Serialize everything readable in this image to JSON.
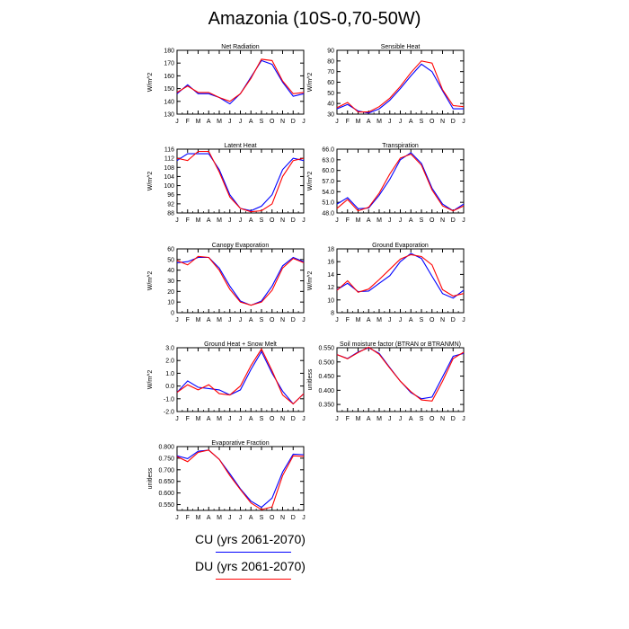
{
  "page": {
    "title": "Amazonia (10S-0,70-50W)"
  },
  "legend": [
    {
      "label": "CU (yrs 2061-2070)",
      "color": "#0000ff"
    },
    {
      "label": "DU (yrs 2061-2070)",
      "color": "#ff0000"
    }
  ],
  "chart_data": [
    {
      "type": "line",
      "title": "Net Radiation",
      "ylabel": "W/m^2",
      "x": [
        "J",
        "F",
        "M",
        "A",
        "M",
        "J",
        "J",
        "A",
        "S",
        "O",
        "N",
        "D",
        "J"
      ],
      "ylim": [
        130,
        180
      ],
      "yticks": [
        "130",
        "140",
        "150",
        "160",
        "170",
        "180"
      ],
      "series": [
        {
          "name": "CU (yrs 2061-2070)",
          "color": "#0000ff",
          "values": [
            146,
            153,
            146,
            146,
            143,
            138,
            146,
            159,
            172,
            169,
            155,
            144,
            146
          ]
        },
        {
          "name": "DU (yrs 2061-2070)",
          "color": "#ff0000",
          "values": [
            147,
            152,
            147,
            147,
            143,
            140,
            146,
            158,
            173,
            172,
            156,
            146,
            147
          ]
        }
      ]
    },
    {
      "type": "line",
      "title": "Sensible Heat",
      "ylabel": "W/m^2",
      "x": [
        "J",
        "F",
        "M",
        "A",
        "M",
        "J",
        "J",
        "A",
        "S",
        "O",
        "N",
        "D",
        "J"
      ],
      "ylim": [
        30,
        90
      ],
      "yticks": [
        "30",
        "40",
        "50",
        "60",
        "70",
        "80",
        "90"
      ],
      "series": [
        {
          "name": "CU (yrs 2061-2070)",
          "color": "#0000ff",
          "values": [
            35,
            39,
            33,
            31,
            35,
            43,
            54,
            66,
            77,
            70,
            52,
            35,
            35
          ]
        },
        {
          "name": "DU (yrs 2061-2070)",
          "color": "#ff0000",
          "values": [
            36,
            41,
            32,
            32,
            37,
            45,
            56,
            69,
            80,
            78,
            53,
            38,
            37
          ]
        }
      ]
    },
    {
      "type": "line",
      "title": "Latent Heat",
      "ylabel": "W/m^2",
      "x": [
        "J",
        "F",
        "M",
        "A",
        "M",
        "J",
        "J",
        "A",
        "S",
        "O",
        "N",
        "D",
        "J"
      ],
      "ylim": [
        88,
        116
      ],
      "yticks": [
        "88",
        "92",
        "96",
        "100",
        "104",
        "108",
        "112",
        "116"
      ],
      "series": [
        {
          "name": "CU (yrs 2061-2070)",
          "color": "#0000ff",
          "values": [
            111,
            114,
            114,
            114,
            107,
            96,
            90,
            89,
            91,
            96,
            107,
            112,
            111
          ]
        },
        {
          "name": "DU (yrs 2061-2070)",
          "color": "#ff0000",
          "values": [
            112,
            111,
            115,
            115,
            106,
            95,
            90,
            88.5,
            89,
            92,
            104,
            111,
            112
          ]
        }
      ]
    },
    {
      "type": "line",
      "title": "Transpiration",
      "ylabel": "W/m^2",
      "x": [
        "J",
        "F",
        "M",
        "A",
        "M",
        "J",
        "J",
        "A",
        "S",
        "O",
        "N",
        "D",
        "J"
      ],
      "ylim": [
        48,
        66
      ],
      "yticks": [
        "48.0",
        "51.0",
        "54.0",
        "57.0",
        "60.0",
        "63.0",
        "66.0"
      ],
      "series": [
        {
          "name": "CU (yrs 2061-2070)",
          "color": "#0000ff",
          "values": [
            50.5,
            52.3,
            49.2,
            49.4,
            53.0,
            57.5,
            63.0,
            65.0,
            62.0,
            55.0,
            50.5,
            48.6,
            50.5
          ]
        },
        {
          "name": "DU (yrs 2061-2070)",
          "color": "#ff0000",
          "values": [
            49.3,
            51.8,
            48.6,
            49.6,
            53.6,
            59.0,
            63.5,
            64.6,
            61.5,
            54.5,
            50.0,
            48.6,
            50.0
          ]
        }
      ]
    },
    {
      "type": "line",
      "title": "Canopy Evaporation",
      "ylabel": "W/m^2",
      "x": [
        "J",
        "F",
        "M",
        "A",
        "M",
        "J",
        "J",
        "A",
        "S",
        "O",
        "N",
        "D",
        "J"
      ],
      "ylim": [
        0,
        60
      ],
      "yticks": [
        "0",
        "10",
        "20",
        "30",
        "40",
        "50",
        "60"
      ],
      "series": [
        {
          "name": "CU (yrs 2061-2070)",
          "color": "#0000ff",
          "values": [
            47,
            48,
            52,
            52,
            42,
            25,
            11,
            7,
            11,
            25,
            44,
            52,
            48
          ]
        },
        {
          "name": "DU (yrs 2061-2070)",
          "color": "#ff0000",
          "values": [
            49,
            45,
            53,
            52,
            40,
            22,
            10,
            7,
            10,
            21,
            42,
            51,
            47
          ]
        }
      ]
    },
    {
      "type": "line",
      "title": "Ground Evaporation",
      "ylabel": "W/m^2",
      "x": [
        "J",
        "F",
        "M",
        "A",
        "M",
        "J",
        "J",
        "A",
        "S",
        "O",
        "N",
        "D",
        "J"
      ],
      "ylim": [
        8,
        18
      ],
      "yticks": [
        "8",
        "10",
        "12",
        "14",
        "16",
        "18"
      ],
      "series": [
        {
          "name": "CU (yrs 2061-2070)",
          "color": "#0000ff",
          "values": [
            11.6,
            12.6,
            11.3,
            11.4,
            12.6,
            13.8,
            16.0,
            17.3,
            16.5,
            13.7,
            11.0,
            10.3,
            11.5
          ]
        },
        {
          "name": "DU (yrs 2061-2070)",
          "color": "#ff0000",
          "values": [
            11.5,
            13.0,
            11.2,
            11.7,
            13.2,
            14.8,
            16.4,
            17.1,
            16.8,
            15.5,
            11.6,
            10.6,
            11.0
          ]
        }
      ]
    },
    {
      "type": "line",
      "title": "Ground Heat + Snow Melt",
      "ylabel": "W/m^2",
      "x": [
        "J",
        "F",
        "M",
        "A",
        "M",
        "J",
        "J",
        "A",
        "S",
        "O",
        "N",
        "D",
        "J"
      ],
      "ylim": [
        -2.0,
        3.0
      ],
      "yticks": [
        "-2.0",
        "-1.0",
        "0.0",
        "1.0",
        "2.0",
        "3.0"
      ],
      "series": [
        {
          "name": "CU (yrs 2061-2070)",
          "color": "#0000ff",
          "values": [
            -0.5,
            0.4,
            -0.1,
            -0.2,
            -0.3,
            -0.7,
            -0.3,
            1.3,
            2.7,
            1.0,
            -0.4,
            -1.4,
            -0.6
          ]
        },
        {
          "name": "DU (yrs 2061-2070)",
          "color": "#ff0000",
          "values": [
            -0.5,
            0.1,
            -0.3,
            0.1,
            -0.6,
            -0.7,
            0.0,
            1.6,
            2.9,
            1.2,
            -0.7,
            -1.4,
            -0.6
          ]
        }
      ]
    },
    {
      "type": "line",
      "title": "Soil moisture factor (BTRAN or BTRANMN)",
      "ylabel": "unitless",
      "x": [
        "J",
        "F",
        "M",
        "A",
        "M",
        "J",
        "J",
        "A",
        "S",
        "O",
        "N",
        "D",
        "J"
      ],
      "ylim": [
        0.325,
        0.55
      ],
      "yticks": [
        "0.350",
        "0.400",
        "0.450",
        "0.500",
        "0.550"
      ],
      "series": [
        {
          "name": "CU (yrs 2061-2070)",
          "color": "#0000ff",
          "values": [
            0.526,
            0.512,
            0.535,
            0.55,
            0.53,
            0.48,
            0.432,
            0.392,
            0.37,
            0.376,
            0.447,
            0.52,
            0.53
          ]
        },
        {
          "name": "DU (yrs 2061-2070)",
          "color": "#ff0000",
          "values": [
            0.526,
            0.511,
            0.533,
            0.552,
            0.527,
            0.478,
            0.432,
            0.395,
            0.366,
            0.362,
            0.432,
            0.512,
            0.534
          ]
        }
      ]
    },
    {
      "type": "line",
      "title": "Evaporative Fraction",
      "ylabel": "unitless",
      "x": [
        "J",
        "F",
        "M",
        "A",
        "M",
        "J",
        "J",
        "A",
        "S",
        "O",
        "N",
        "D",
        "J"
      ],
      "ylim": [
        0.525,
        0.8
      ],
      "yticks": [
        "0.550",
        "0.600",
        "0.650",
        "0.700",
        "0.750",
        "0.800"
      ],
      "series": [
        {
          "name": "CU (yrs 2061-2070)",
          "color": "#0000ff",
          "values": [
            0.76,
            0.748,
            0.78,
            0.785,
            0.745,
            0.683,
            0.618,
            0.565,
            0.538,
            0.578,
            0.69,
            0.767,
            0.765
          ]
        },
        {
          "name": "DU (yrs 2061-2070)",
          "color": "#ff0000",
          "values": [
            0.757,
            0.735,
            0.775,
            0.785,
            0.745,
            0.675,
            0.615,
            0.557,
            0.528,
            0.54,
            0.675,
            0.76,
            0.758
          ]
        }
      ]
    }
  ]
}
